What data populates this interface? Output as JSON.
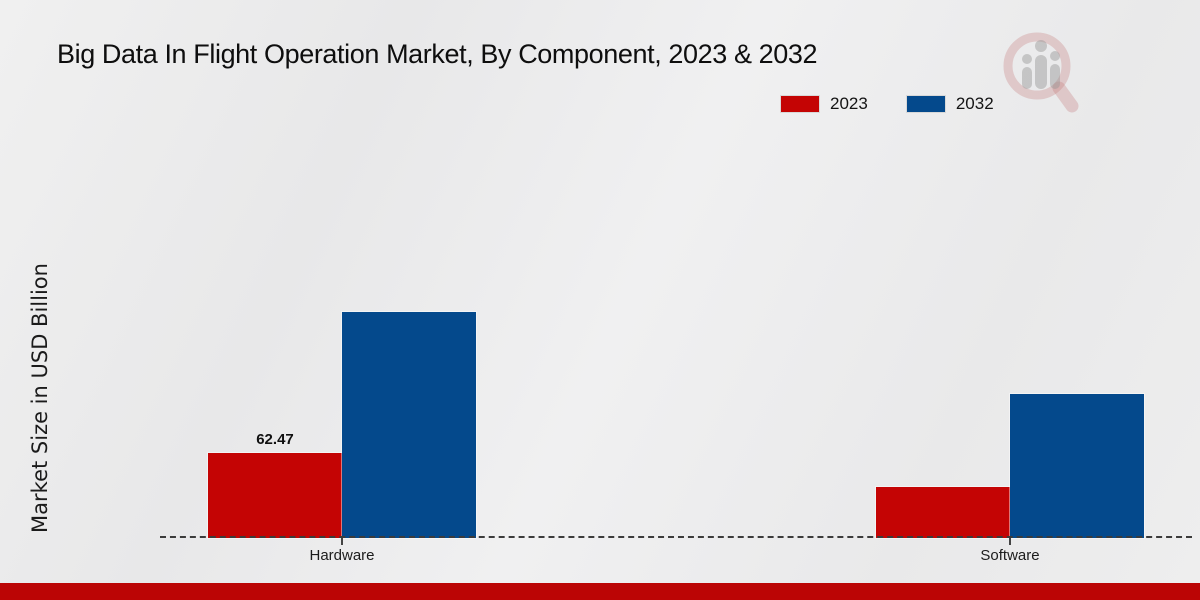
{
  "header": {
    "title": "Big Data In Flight Operation Market, By Component, 2023 & 2032"
  },
  "chart_data": {
    "type": "bar",
    "title": "Big Data In Flight Operation Market, By Component, 2023 & 2032",
    "categories": [
      "Hardware",
      "Software"
    ],
    "series": [
      {
        "name": "2023",
        "color": "#c40404",
        "values": [
          62.47,
          37.5
        ],
        "data_labels": [
          "62.47",
          ""
        ]
      },
      {
        "name": "2032",
        "color": "#04498c",
        "values": [
          166,
          106
        ],
        "data_labels": [
          "",
          ""
        ]
      }
    ],
    "xlabel": "",
    "ylabel": "Market Size in USD Billion",
    "ylim": [
      0,
      300
    ],
    "grid": false,
    "legend_position": "top-right",
    "baseline_style": "dashed"
  },
  "footer": {
    "color": "#bb0505"
  },
  "watermark": {
    "glass_color": "rgba(197,118,118,0.30)",
    "bar_color": "rgba(150,150,150,0.45)"
  }
}
